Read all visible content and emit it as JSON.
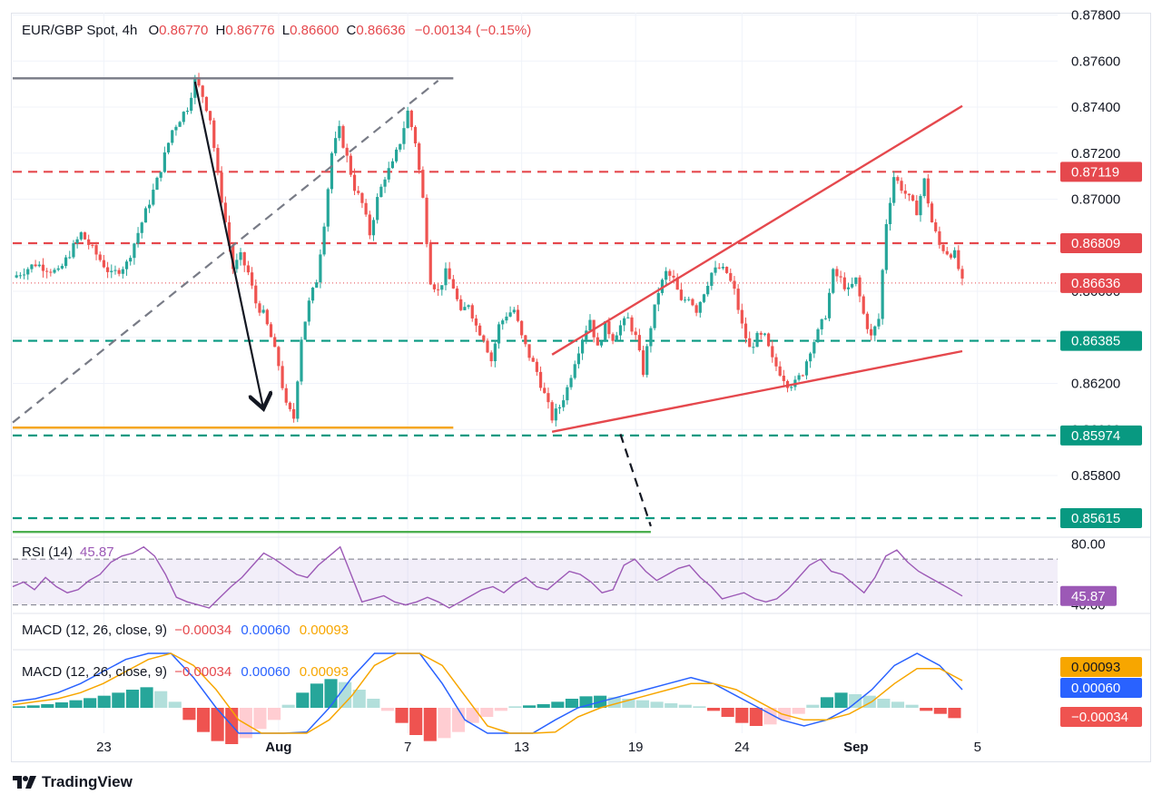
{
  "header": {
    "symbol": "EUR/GBP Spot, 4h",
    "open_label": "O",
    "open": "0.86770",
    "high_label": "H",
    "high": "0.86776",
    "low_label": "L",
    "low": "0.86600",
    "close_label": "C",
    "close": "0.86636",
    "change": "−0.00134 (−0.15%)"
  },
  "colors": {
    "up": "#26a69a",
    "down": "#ef5350",
    "red_line": "#e5484d",
    "green_line": "#089981",
    "orange": "#f5a623",
    "rsi": "#9c59b6",
    "macd": "#2962ff",
    "signal": "#f7a600"
  },
  "chart_data": [
    {
      "type": "candlestick",
      "title": "EUR/GBP Spot, 4h",
      "y_ticks": [
        "0.87800",
        "0.87600",
        "0.87400",
        "0.87200",
        "0.87000",
        "0.86800",
        "0.86600",
        "0.86400",
        "0.86200",
        "0.86000",
        "0.85800"
      ],
      "x_ticks": [
        "23",
        "Aug",
        "7",
        "13",
        "19",
        "24",
        "Sep",
        "5"
      ],
      "ylim": [
        0.8554,
        0.8781
      ],
      "last_price": "0.86636",
      "price_labels": [
        {
          "value": 0.87119,
          "label": "0.87119",
          "color": "#e5484d"
        },
        {
          "value": 0.86809,
          "label": "0.86809",
          "color": "#e5484d"
        },
        {
          "value": 0.86636,
          "label": "0.86636",
          "color": "#e5484d"
        },
        {
          "value": 0.86385,
          "label": "0.86385",
          "color": "#089981"
        },
        {
          "value": 0.85974,
          "label": "0.85974",
          "color": "#089981"
        },
        {
          "value": 0.85615,
          "label": "0.85615",
          "color": "#089981"
        }
      ],
      "close_path": [
        [
          0,
          0.8666
        ],
        [
          6,
          0.8672
        ],
        [
          12,
          0.8668
        ],
        [
          18,
          0.8685
        ],
        [
          22,
          0.8676
        ],
        [
          26,
          0.8667
        ],
        [
          30,
          0.8672
        ],
        [
          34,
          0.869
        ],
        [
          38,
          0.8708
        ],
        [
          42,
          0.873
        ],
        [
          46,
          0.874
        ],
        [
          48,
          0.8752
        ],
        [
          50,
          0.8745
        ],
        [
          52,
          0.8735
        ],
        [
          54,
          0.871
        ],
        [
          56,
          0.869
        ],
        [
          58,
          0.867
        ],
        [
          60,
          0.8675
        ],
        [
          62,
          0.8668
        ],
        [
          64,
          0.8655
        ],
        [
          66,
          0.865
        ],
        [
          68,
          0.864
        ],
        [
          70,
          0.8628
        ],
        [
          72,
          0.861
        ],
        [
          74,
          0.8605
        ],
        [
          76,
          0.864
        ],
        [
          78,
          0.8655
        ],
        [
          80,
          0.8665
        ],
        [
          82,
          0.869
        ],
        [
          84,
          0.872
        ],
        [
          86,
          0.873
        ],
        [
          88,
          0.8718
        ],
        [
          90,
          0.8705
        ],
        [
          92,
          0.8698
        ],
        [
          94,
          0.8685
        ],
        [
          96,
          0.87
        ],
        [
          98,
          0.871
        ],
        [
          100,
          0.8715
        ],
        [
          102,
          0.8725
        ],
        [
          104,
          0.8738
        ],
        [
          106,
          0.8725
        ],
        [
          108,
          0.87
        ],
        [
          110,
          0.8665
        ],
        [
          112,
          0.866
        ],
        [
          114,
          0.8668
        ],
        [
          116,
          0.8662
        ],
        [
          118,
          0.865
        ],
        [
          120,
          0.8655
        ],
        [
          122,
          0.8645
        ],
        [
          124,
          0.864
        ],
        [
          126,
          0.863
        ],
        [
          128,
          0.8645
        ],
        [
          130,
          0.865
        ],
        [
          132,
          0.8652
        ],
        [
          134,
          0.864
        ],
        [
          136,
          0.8632
        ],
        [
          138,
          0.8625
        ],
        [
          140,
          0.8615
        ],
        [
          142,
          0.8605
        ],
        [
          144,
          0.861
        ],
        [
          146,
          0.8618
        ],
        [
          148,
          0.863
        ],
        [
          150,
          0.864
        ],
        [
          152,
          0.8648
        ],
        [
          154,
          0.8635
        ],
        [
          156,
          0.8645
        ],
        [
          158,
          0.864
        ],
        [
          160,
          0.8645
        ],
        [
          162,
          0.8648
        ],
        [
          164,
          0.864
        ],
        [
          166,
          0.8625
        ],
        [
          168,
          0.8645
        ],
        [
          170,
          0.866
        ],
        [
          172,
          0.8668
        ],
        [
          174,
          0.8665
        ],
        [
          176,
          0.8655
        ],
        [
          178,
          0.8658
        ],
        [
          180,
          0.8652
        ],
        [
          182,
          0.866
        ],
        [
          184,
          0.8668
        ],
        [
          186,
          0.867
        ],
        [
          188,
          0.8668
        ],
        [
          190,
          0.866
        ],
        [
          192,
          0.8645
        ],
        [
          194,
          0.8635
        ],
        [
          196,
          0.864
        ],
        [
          198,
          0.864
        ],
        [
          200,
          0.863
        ],
        [
          202,
          0.8625
        ],
        [
          204,
          0.862
        ],
        [
          206,
          0.862
        ],
        [
          208,
          0.8625
        ],
        [
          210,
          0.8635
        ],
        [
          212,
          0.8642
        ],
        [
          214,
          0.865
        ],
        [
          216,
          0.8668
        ],
        [
          218,
          0.8665
        ],
        [
          220,
          0.866
        ],
        [
          222,
          0.8665
        ],
        [
          224,
          0.865
        ],
        [
          226,
          0.864
        ],
        [
          228,
          0.8648
        ],
        [
          230,
          0.869
        ],
        [
          232,
          0.871
        ],
        [
          234,
          0.8705
        ],
        [
          236,
          0.87
        ],
        [
          238,
          0.8695
        ],
        [
          240,
          0.8708
        ],
        [
          242,
          0.869
        ],
        [
          244,
          0.868
        ],
        [
          246,
          0.8677
        ],
        [
          248,
          0.8676
        ],
        [
          250,
          0.86636
        ]
      ],
      "trend_lines": [
        {
          "name": "resistance-top",
          "color": "#787b86",
          "style": "solid",
          "from": [
            0,
            0.87525
          ],
          "to": [
            116,
            0.87525
          ]
        },
        {
          "name": "diagonal-gray",
          "color": "#787b86",
          "style": "dashed",
          "from": [
            0,
            0.8603
          ],
          "to": [
            112,
            0.87515
          ]
        },
        {
          "name": "drop-arrow",
          "color": "#131722",
          "style": "arrow",
          "from": [
            48,
            0.8751
          ],
          "to": [
            66,
            0.8609
          ]
        },
        {
          "name": "support-orange",
          "color": "#f5a623",
          "style": "solid",
          "from": [
            0,
            0.86008
          ],
          "to": [
            116,
            0.86008
          ]
        },
        {
          "name": "wedge-upper",
          "color": "#e5484d",
          "style": "solid",
          "from": [
            142,
            0.86325
          ],
          "to": [
            250,
            0.87405
          ]
        },
        {
          "name": "wedge-lower",
          "color": "#e5484d",
          "style": "solid",
          "from": [
            142,
            0.8599
          ],
          "to": [
            250,
            0.8634
          ]
        },
        {
          "name": "projection",
          "color": "#131722",
          "style": "dashed",
          "from": [
            160,
            0.8598
          ],
          "to": [
            168,
            0.8558
          ]
        },
        {
          "name": "support-green",
          "color": "#4caf50",
          "style": "solid",
          "from": [
            0,
            0.85555
          ],
          "to": [
            168,
            0.85555
          ]
        }
      ],
      "h_levels": [
        {
          "value": 0.87119,
          "color": "#e5484d"
        },
        {
          "value": 0.86809,
          "color": "#e5484d"
        },
        {
          "value": 0.86385,
          "color": "#089981"
        },
        {
          "value": 0.85974,
          "color": "#089981"
        },
        {
          "value": 0.85615,
          "color": "#089981"
        }
      ]
    },
    {
      "type": "line",
      "title": "RSI (14)",
      "value_label": "45.87",
      "y_ticks": [
        "80.00",
        "40.00"
      ],
      "ylim": [
        38,
        82
      ],
      "band": [
        40,
        70
      ],
      "values": [
        52,
        55,
        50,
        58,
        52,
        48,
        50,
        56,
        60,
        68,
        72,
        74,
        78,
        72,
        60,
        45,
        42,
        40,
        38,
        45,
        52,
        58,
        66,
        74,
        70,
        65,
        60,
        58,
        66,
        72,
        78,
        60,
        42,
        44,
        46,
        42,
        40,
        42,
        45,
        42,
        38,
        42,
        46,
        50,
        52,
        48,
        54,
        58,
        52,
        50,
        56,
        62,
        60,
        55,
        48,
        50,
        66,
        70,
        62,
        56,
        60,
        64,
        66,
        58,
        52,
        44,
        46,
        48,
        44,
        42,
        44,
        50,
        58,
        66,
        70,
        62,
        60,
        54,
        48,
        58,
        72,
        76,
        68,
        62,
        58,
        54,
        50,
        45.87
      ],
      "color": "#9c59b6"
    },
    {
      "type": "bar",
      "title": "MACD (12, 26, close, 9)",
      "values_label": [
        "−0.00034",
        "0.00060",
        "0.00093"
      ],
      "labels": [
        "−0.00034",
        "0.00060",
        "0.00093"
      ],
      "histogram": [
        5e-05,
        8e-05,
        0.00012,
        0.00018,
        0.00025,
        0.00032,
        0.0004,
        0.0005,
        0.0006,
        0.00068,
        0.00055,
        0.0002,
        -0.0004,
        -0.0008,
        -0.0011,
        -0.0012,
        -0.001,
        -0.0007,
        -0.0004,
        0.0001,
        0.0005,
        0.0008,
        0.00095,
        0.00085,
        0.0006,
        0.0003,
        -0.0001,
        -0.0005,
        -0.0009,
        -0.0011,
        -0.001,
        -0.0008,
        -0.0005,
        -0.0003,
        -0.0001,
        5e-05,
        8e-05,
        0.00012,
        0.0002,
        0.0003,
        0.00038,
        0.0004,
        0.00035,
        0.0003,
        0.00025,
        0.0002,
        0.00015,
        0.0001,
        5e-05,
        -0.0001,
        -0.0003,
        -0.0005,
        -0.0006,
        -0.00055,
        -0.0004,
        -0.0002,
        0.0001,
        0.00035,
        0.0005,
        0.00045,
        0.0004,
        0.0003,
        0.0002,
        0.0001,
        -0.0001,
        -0.0002,
        -0.00034
      ],
      "macd_line": [
        0.0002,
        0.0003,
        0.0005,
        0.0008,
        0.0012,
        0.0016,
        0.002,
        0.0018,
        0.001,
        0.0,
        -0.001,
        -0.0016,
        -0.0014,
        -0.0008,
        0.0,
        0.001,
        0.002,
        0.0024,
        0.0018,
        0.0008,
        -0.0004,
        -0.0012,
        -0.0014,
        -0.001,
        -0.0004,
        0.0,
        0.0002,
        0.0004,
        0.0006,
        0.0008,
        0.001,
        0.0008,
        0.0004,
        0.0,
        -0.0004,
        -0.0006,
        -0.0004,
        0.0,
        0.0006,
        0.0014,
        0.0018,
        0.0014,
        0.0006
      ],
      "signal_line": [
        0.0001,
        0.0002,
        0.0003,
        0.0005,
        0.0008,
        0.0012,
        0.0016,
        0.0018,
        0.0014,
        0.0006,
        -0.0004,
        -0.0012,
        -0.0014,
        -0.001,
        -0.0004,
        0.0004,
        0.0014,
        0.002,
        0.002,
        0.0014,
        0.0004,
        -0.0006,
        -0.0012,
        -0.0012,
        -0.0008,
        -0.0003,
        0.0,
        0.0002,
        0.0004,
        0.0006,
        0.0008,
        0.0008,
        0.0006,
        0.0002,
        -0.0002,
        -0.0004,
        -0.0004,
        -0.0002,
        0.0002,
        0.0008,
        0.0013,
        0.0013,
        0.0009
      ],
      "color_macd": "#2962ff",
      "color_signal": "#f7a600"
    }
  ],
  "footer": {
    "brand": "TradingView"
  }
}
